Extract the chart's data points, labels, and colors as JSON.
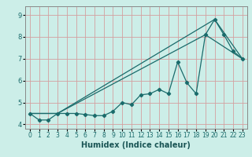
{
  "xlabel": "Humidex (Indice chaleur)",
  "ylabel": "",
  "background_color": "#cceee8",
  "grid_color": "#d4a0a0",
  "line_color": "#1a6b6b",
  "x_values": [
    0,
    1,
    2,
    3,
    4,
    5,
    6,
    7,
    8,
    9,
    10,
    11,
    12,
    13,
    14,
    15,
    16,
    17,
    18,
    19,
    20,
    21,
    22,
    23
  ],
  "series1": [
    4.5,
    4.2,
    4.2,
    4.5,
    4.5,
    4.5,
    4.45,
    4.4,
    4.4,
    4.6,
    5.0,
    4.9,
    5.35,
    5.4,
    5.6,
    5.4,
    6.85,
    5.9,
    5.4,
    8.1,
    8.8,
    8.1,
    7.35,
    7.0
  ],
  "series2_x": [
    0,
    3,
    19,
    23
  ],
  "series2_y": [
    4.5,
    4.5,
    8.1,
    7.0
  ],
  "series3_x": [
    0,
    3,
    20,
    23
  ],
  "series3_y": [
    4.5,
    4.5,
    8.8,
    7.0
  ],
  "ylim": [
    3.8,
    9.4
  ],
  "xlim": [
    -0.5,
    23.5
  ],
  "yticks": [
    4,
    5,
    6,
    7,
    8,
    9
  ],
  "xticks": [
    0,
    1,
    2,
    3,
    4,
    5,
    6,
    7,
    8,
    9,
    10,
    11,
    12,
    13,
    14,
    15,
    16,
    17,
    18,
    19,
    20,
    21,
    22,
    23
  ],
  "tick_fontsize": 5.5,
  "xlabel_fontsize": 7,
  "xlabel_color": "#1a5555"
}
